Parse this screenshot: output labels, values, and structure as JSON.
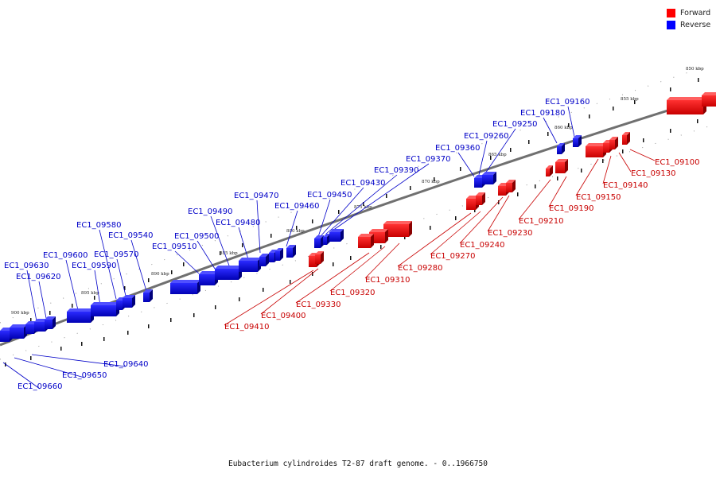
{
  "legend": {
    "forward_label": "Forward",
    "reverse_label": "Reverse",
    "forward_color": "#ff0000",
    "reverse_color": "#0000ff"
  },
  "caption": "Eubacterium cylindroides T2-87 draft genome. - 0..1966750",
  "kbp_ticks": [
    "850 kbp",
    "855 kbp",
    "860 kbp",
    "865 kbp",
    "870 kbp",
    "875 kbp",
    "880 kbp",
    "885 kbp",
    "890 kbp",
    "895 kbp",
    "900 kbp"
  ],
  "reverse_genes": [
    "EC1_09160",
    "EC1_09180",
    "EC1_09250",
    "EC1_09260",
    "EC1_09360",
    "EC1_09370",
    "EC1_09390",
    "EC1_09430",
    "EC1_09450",
    "EC1_09460",
    "EC1_09470",
    "EC1_09480",
    "EC1_09490",
    "EC1_09500",
    "EC1_09510",
    "EC1_09540",
    "EC1_09570",
    "EC1_09580",
    "EC1_09590",
    "EC1_09600",
    "EC1_09620",
    "EC1_09630",
    "EC1_09640",
    "EC1_09650",
    "EC1_09660"
  ],
  "forward_genes": [
    "EC1_09100",
    "EC1_09130",
    "EC1_09140",
    "EC1_09150",
    "EC1_09190",
    "EC1_09210",
    "EC1_09230",
    "EC1_09240",
    "EC1_09270",
    "EC1_09280",
    "EC1_09310",
    "EC1_09320",
    "EC1_09330",
    "EC1_09400",
    "EC1_09410"
  ]
}
